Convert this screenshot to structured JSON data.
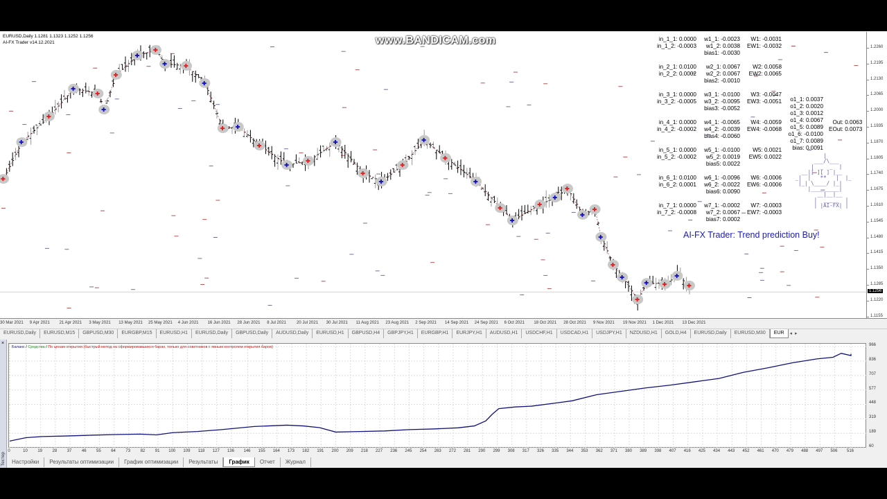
{
  "watermark": "www.BANDICAM.com",
  "chart": {
    "symbol_line": "EURUSD,Daily  1.1281 1.1323 1.1252 1.1256",
    "ea_line": "AI-FX Trader v14.12.2021",
    "current_price": "1.1256",
    "price_ticks": [
      "1.2260",
      "1.2195",
      "1.2130",
      "1.2065",
      "1.2000",
      "1.1935",
      "1.1870",
      "1.1805",
      "1.1740",
      "1.1675",
      "1.1610",
      "1.1545",
      "1.1480",
      "1.1415",
      "1.1350",
      "1.1285",
      "1.1220",
      "1.1155"
    ],
    "date_ticks": [
      "30 Mar 2021",
      "9 Apr 2021",
      "21 Apr 2021",
      "3 May 2021",
      "13 May 2021",
      "25 May 2021",
      "4 Jun 2021",
      "16 Jun 2021",
      "28 Jun 2021",
      "8 Jul 2021",
      "20 Jul 2021",
      "30 Jul 2021",
      "11 Aug 2021",
      "23 Aug 2021",
      "2 Sep 2021",
      "14 Sep 2021",
      "24 Sep 2021",
      "6 Oct 2021",
      "18 Oct 2021",
      "28 Oct 2021",
      "9 Nov 2021",
      "19 Nov 2021",
      "1 Dec 2021",
      "13 Dec 2021"
    ],
    "price_path": [
      [
        0,
        1.1721
      ],
      [
        6,
        1.1872
      ],
      [
        15,
        1.1978
      ],
      [
        23,
        1.2092
      ],
      [
        31,
        1.2072
      ],
      [
        33,
        1.2006
      ],
      [
        37,
        1.2149
      ],
      [
        44,
        1.2229
      ],
      [
        50,
        1.2251
      ],
      [
        53,
        1.2194
      ],
      [
        60,
        1.2186
      ],
      [
        66,
        1.2115
      ],
      [
        72,
        1.1929
      ],
      [
        77,
        1.1935
      ],
      [
        84,
        1.1858
      ],
      [
        93,
        1.1778
      ],
      [
        100,
        1.1795
      ],
      [
        109,
        1.1872
      ],
      [
        118,
        1.1744
      ],
      [
        124,
        1.171
      ],
      [
        131,
        1.1778
      ],
      [
        138,
        1.1881
      ],
      [
        145,
        1.1807
      ],
      [
        155,
        1.171
      ],
      [
        163,
        1.1601
      ],
      [
        167,
        1.155
      ],
      [
        176,
        1.1616
      ],
      [
        181,
        1.1644
      ],
      [
        185,
        1.1681
      ],
      [
        190,
        1.1573
      ],
      [
        194,
        1.1596
      ],
      [
        196,
        1.1482
      ],
      [
        200,
        1.1368
      ],
      [
        203,
        1.1316
      ],
      [
        208,
        1.1225
      ],
      [
        211,
        1.1293
      ],
      [
        217,
        1.1288
      ],
      [
        221,
        1.1322
      ],
      [
        225,
        1.1282
      ]
    ],
    "colors": {
      "up_marker": "#e02020",
      "down_marker": "#1010c0",
      "bar": "#000000",
      "marker_bg": "#c8c8c8"
    }
  },
  "nn": {
    "col1": [
      "in_1_1: 0.0000",
      "in_1_2: -0.0003",
      "",
      "",
      "in_2_1: 0.0100",
      "in_2_2: 0.0002",
      "",
      "",
      "in_3_1: 0.0000",
      "in_3_2: -0.0005",
      "",
      "",
      "in_4_1: 0.0000",
      "in_4_2: -0.0002",
      "",
      "",
      "in_5_1: 0.0000",
      "in_5_2: -0.0002",
      "",
      "",
      "in_6_1: 0.0100",
      "in_6_2: 0.0001",
      "",
      "",
      "in_7_1: 0.0000",
      "in_7_2: -0.0008"
    ],
    "col2": [
      "w1_1: -0.0023",
      "w1_2: 0.0038",
      "bias1: -0.0030",
      "",
      "w2_1: 0.0067",
      "w2_2: 0.0067",
      "bias2: -0.0010",
      "",
      "w3_1: -0.0100",
      "w3_2: -0.0095",
      "bias3: -0.0052",
      "",
      "w4_1: -0.0065",
      "w4_2: -0.0039",
      "bias4: -0.0060",
      "",
      "w5_1: -0.0100",
      "w5_2: 0.0019",
      "bias5: 0.0022",
      "",
      "w6_1: -0.0096",
      "w6_2: -0.0022",
      "bias6: 0.0090",
      "",
      "w7_1: -0.0002",
      "w7_2: 0.0067",
      "bias7: 0.0002"
    ],
    "col3": [
      "W1: -0.0031",
      "EW1: -0.0032",
      "",
      "",
      "W2: 0.0058",
      "EW2: 0.0065",
      "",
      "",
      "W3: -0.0047",
      "EW3: -0.0051",
      "",
      "",
      "W4: -0.0059",
      "EW4: -0.0068",
      "",
      "",
      "W5: 0.0021",
      "EW5: 0.0022",
      "",
      "",
      "W6: -0.0006",
      "EW6: -0.0006",
      "",
      "",
      "W7: -0.0003",
      "EW7: -0.0003"
    ],
    "col4": [
      "o1_1: 0.0037",
      "o1_2: 0.0020",
      "o1_3: 0.0012",
      "o1_4: 0.0067",
      "o1_5: 0.0089",
      "o1_6: -0.0100",
      "o1_7: 0.0089",
      "bias: 0.0091"
    ],
    "out": "Out: 0.0063",
    "eout": "EOut: 0.0073",
    "robot_label": "AI-FX",
    "prediction": "AI-FX Trader: Trend prediction Buy!"
  },
  "symbol_tabs": [
    "EURUSD,Daily",
    "EURUSD,M15",
    "GBPUSD,M30",
    "EURGBP,M15",
    "EURUSD,H1",
    "EURUSD,Daily",
    "GBPUSD,Daily",
    "AUDUSD,Daily",
    "EURUSD,H1",
    "GBPUSD,H4",
    "GBPJPY,H1",
    "EURGBP,H1",
    "EURJPY,H1",
    "AUDUSD,H1",
    "USDCHF,H1",
    "USDCAD,H1",
    "USDJPY,H1",
    "NZDUSD,H1",
    "GOLD,H4",
    "EURUSD,Daily",
    "EURUSD,M30",
    "EUR"
  ],
  "tab_scroll": {
    "left": "◂",
    "right": "▸"
  },
  "tester": {
    "panel_label": "Тестер",
    "close": "×",
    "legend": {
      "balance": "Баланс",
      "sep": " / ",
      "equity": "Средства",
      "mode": "По ценам открытия (быстрый метод на сформировавшихся барах, только для советников с явным контролем открытия баров)"
    },
    "y_ticks": [
      "966",
      "836",
      "707",
      "577",
      "448",
      "319",
      "189",
      "60"
    ],
    "x_ticks": [
      "0",
      "10",
      "19",
      "28",
      "37",
      "46",
      "55",
      "64",
      "73",
      "82",
      "91",
      "100",
      "109",
      "118",
      "127",
      "136",
      "146",
      "155",
      "164",
      "173",
      "182",
      "191",
      "200",
      "209",
      "218",
      "227",
      "236",
      "245",
      "254",
      "263",
      "272",
      "281",
      "290",
      "299",
      "308",
      "317",
      "326",
      "335",
      "344",
      "353",
      "362",
      "371",
      "380",
      "389",
      "398",
      "407",
      "416",
      "425",
      "434",
      "443",
      "452",
      "461",
      "470",
      "479",
      "488",
      "497",
      "506",
      "516"
    ],
    "balance_series": [
      [
        0,
        120
      ],
      [
        10,
        150
      ],
      [
        20,
        160
      ],
      [
        35,
        165
      ],
      [
        50,
        172
      ],
      [
        65,
        178
      ],
      [
        80,
        182
      ],
      [
        90,
        175
      ],
      [
        100,
        195
      ],
      [
        115,
        205
      ],
      [
        130,
        222
      ],
      [
        150,
        250
      ],
      [
        170,
        262
      ],
      [
        180,
        255
      ],
      [
        190,
        240
      ],
      [
        200,
        200
      ],
      [
        215,
        205
      ],
      [
        230,
        210
      ],
      [
        245,
        222
      ],
      [
        260,
        228
      ],
      [
        275,
        238
      ],
      [
        285,
        255
      ],
      [
        292,
        300
      ],
      [
        296,
        360
      ],
      [
        300,
        410
      ],
      [
        310,
        425
      ],
      [
        320,
        432
      ],
      [
        335,
        460
      ],
      [
        345,
        480
      ],
      [
        360,
        535
      ],
      [
        375,
        565
      ],
      [
        390,
        595
      ],
      [
        405,
        620
      ],
      [
        420,
        650
      ],
      [
        435,
        680
      ],
      [
        450,
        735
      ],
      [
        465,
        775
      ],
      [
        480,
        820
      ],
      [
        495,
        855
      ],
      [
        505,
        870
      ],
      [
        510,
        905
      ],
      [
        516,
        885
      ],
      [
        520,
        900
      ]
    ],
    "line_color": "#10107a"
  },
  "bottom_tabs": [
    "Настройки",
    "Результаты оптимизации",
    "График оптимизации",
    "Результаты",
    "График",
    "Отчет",
    "Журнал"
  ],
  "bottom_tab_active": "График"
}
